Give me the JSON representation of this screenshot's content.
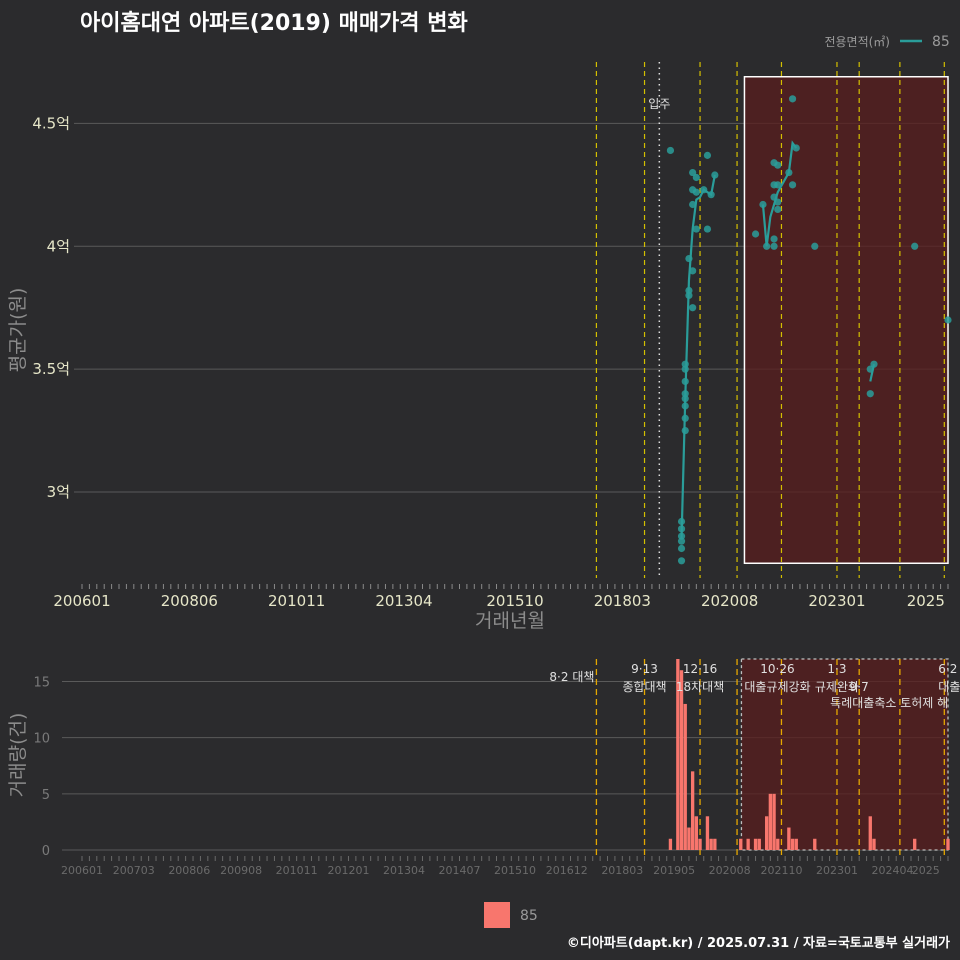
{
  "title": "아이홈대연 아파트(2019) 매매가격 변화",
  "legend": {
    "title": "전용면적(㎡)",
    "label": "85"
  },
  "footer": "©디아파트(dapt.kr) / 2025.07.31 / 자료=국토교통부 실거래가",
  "colors": {
    "background": "#2b2b2d",
    "line": "#2a9d9a",
    "point": "#2a9d9a",
    "bar": "#f8766d",
    "policy_line": "#d4c000",
    "shade": "#5a1e1e",
    "grid": "#5a5a5a"
  },
  "chart_data": [
    {
      "type": "scatter",
      "name": "price",
      "xlabel": "거래년월",
      "ylabel": "평균가(원)",
      "xlim": [
        "200601",
        "202507"
      ],
      "ylim": [
        2.65,
        4.75
      ],
      "x_ticks": [
        "200601",
        "200806",
        "201011",
        "201304",
        "201510",
        "201803",
        "202008",
        "202301",
        "2025"
      ],
      "y_ticks": [
        {
          "value": 3.0,
          "label": "3억"
        },
        {
          "value": 3.5,
          "label": "3.5억"
        },
        {
          "value": 4.0,
          "label": "4억"
        },
        {
          "value": 4.5,
          "label": "4.5억"
        }
      ],
      "vlines": [
        "201708",
        "201809",
        "201912",
        "202010",
        "202110",
        "202301",
        "202307",
        "202406",
        "202506"
      ],
      "move_in": {
        "label": "입주",
        "x": "201901"
      },
      "shade": {
        "from": "202012",
        "to": "202507",
        "ymin": 2.71,
        "ymax": 4.69
      },
      "points": [
        {
          "x": "201904",
          "y": 4.39
        },
        {
          "x": "201907",
          "y": 2.88
        },
        {
          "x": "201907",
          "y": 2.85
        },
        {
          "x": "201907",
          "y": 2.82
        },
        {
          "x": "201907",
          "y": 2.8
        },
        {
          "x": "201907",
          "y": 2.77
        },
        {
          "x": "201907",
          "y": 2.72
        },
        {
          "x": "201908",
          "y": 3.5
        },
        {
          "x": "201908",
          "y": 3.45
        },
        {
          "x": "201908",
          "y": 3.4
        },
        {
          "x": "201908",
          "y": 3.38
        },
        {
          "x": "201908",
          "y": 3.35
        },
        {
          "x": "201908",
          "y": 3.3
        },
        {
          "x": "201908",
          "y": 3.25
        },
        {
          "x": "201908",
          "y": 3.52
        },
        {
          "x": "201909",
          "y": 3.95
        },
        {
          "x": "201909",
          "y": 3.82
        },
        {
          "x": "201909",
          "y": 3.8
        },
        {
          "x": "201910",
          "y": 4.3
        },
        {
          "x": "201910",
          "y": 4.23
        },
        {
          "x": "201910",
          "y": 4.17
        },
        {
          "x": "201910",
          "y": 3.9
        },
        {
          "x": "201910",
          "y": 3.75
        },
        {
          "x": "201911",
          "y": 4.28
        },
        {
          "x": "201911",
          "y": 4.22
        },
        {
          "x": "201911",
          "y": 4.07
        },
        {
          "x": "202001",
          "y": 4.23
        },
        {
          "x": "202002",
          "y": 4.37
        },
        {
          "x": "202002",
          "y": 4.07
        },
        {
          "x": "202003",
          "y": 4.21
        },
        {
          "x": "202004",
          "y": 4.29
        },
        {
          "x": "202103",
          "y": 4.05
        },
        {
          "x": "202105",
          "y": 4.17
        },
        {
          "x": "202106",
          "y": 4.0
        },
        {
          "x": "202108",
          "y": 4.34
        },
        {
          "x": "202108",
          "y": 4.25
        },
        {
          "x": "202108",
          "y": 4.2
        },
        {
          "x": "202108",
          "y": 4.03
        },
        {
          "x": "202108",
          "y": 4.0
        },
        {
          "x": "202109",
          "y": 4.33
        },
        {
          "x": "202109",
          "y": 4.25
        },
        {
          "x": "202109",
          "y": 4.18
        },
        {
          "x": "202109",
          "y": 4.15
        },
        {
          "x": "202112",
          "y": 4.3
        },
        {
          "x": "202201",
          "y": 4.6
        },
        {
          "x": "202201",
          "y": 4.25
        },
        {
          "x": "202202",
          "y": 4.4
        },
        {
          "x": "202207",
          "y": 4.0
        },
        {
          "x": "202310",
          "y": 3.4
        },
        {
          "x": "202311",
          "y": 3.52
        },
        {
          "x": "202310",
          "y": 3.5
        },
        {
          "x": "202410",
          "y": 4.0
        },
        {
          "x": "202507",
          "y": 3.7
        }
      ],
      "series": [
        {
          "name": "85",
          "x": [
            "201907",
            "201908",
            "201909",
            "201910",
            "201911",
            "201912",
            "202001",
            "202002",
            "202003",
            "202004",
            "202105",
            "202106",
            "202107",
            "202108",
            "202109",
            "202112",
            "202201",
            "202202",
            "202310",
            "202311"
          ],
          "y": [
            2.81,
            3.38,
            3.86,
            4.07,
            4.19,
            4.2,
            4.23,
            4.22,
            4.21,
            4.29,
            4.17,
            4.0,
            4.12,
            4.17,
            4.22,
            4.3,
            4.42,
            4.4,
            3.45,
            3.52
          ]
        }
      ]
    },
    {
      "type": "bar",
      "name": "volume",
      "ylabel": "거래량(건)",
      "ylim": [
        0,
        17
      ],
      "y_ticks": [
        0,
        5,
        10,
        15
      ],
      "x_ticks": [
        "200601",
        "200703",
        "200806",
        "200908",
        "201011",
        "201201",
        "201304",
        "201407",
        "201510",
        "201612",
        "201803",
        "201905",
        "202008",
        "202110",
        "202301",
        "202404",
        "2025"
      ],
      "shade": {
        "from": "202012",
        "to": "202507",
        "ymin": 0,
        "ymax": 17
      },
      "series": [
        {
          "name": "85",
          "x": [
            "201904",
            "201906",
            "201907",
            "201908",
            "201909",
            "201910",
            "201911",
            "201912",
            "202002",
            "202003",
            "202004",
            "202011",
            "202101",
            "202103",
            "202104",
            "202106",
            "202107",
            "202108",
            "202109",
            "202112",
            "202201",
            "202202",
            "202207",
            "202310",
            "202311",
            "202410",
            "202507"
          ],
          "values": [
            1,
            17,
            16,
            13,
            2,
            7,
            3,
            1,
            3,
            1,
            1,
            1,
            1,
            1,
            1,
            3,
            5,
            5,
            1,
            2,
            1,
            1,
            1,
            3,
            1,
            1,
            1
          ]
        }
      ],
      "policies": [
        {
          "x": "201708",
          "date": "8·2",
          "label": "8·2 대책"
        },
        {
          "x": "201809",
          "date": "9·13",
          "label": "종합대책"
        },
        {
          "x": "201912",
          "date": "12·16",
          "label": "18차대책"
        },
        {
          "x": "202010",
          "date": "",
          "label": ""
        },
        {
          "x": "202110",
          "date": "10·26",
          "label": "대출규제강화"
        },
        {
          "x": "202301",
          "date": "1·3",
          "label": "규제완화"
        },
        {
          "x": "202307",
          "date": "9·7",
          "label": "특례대출축소 토허제 해"
        },
        {
          "x": "202406",
          "date": "",
          "label": ""
        },
        {
          "x": "202506",
          "date": "6·2",
          "label": "대출"
        }
      ]
    }
  ]
}
